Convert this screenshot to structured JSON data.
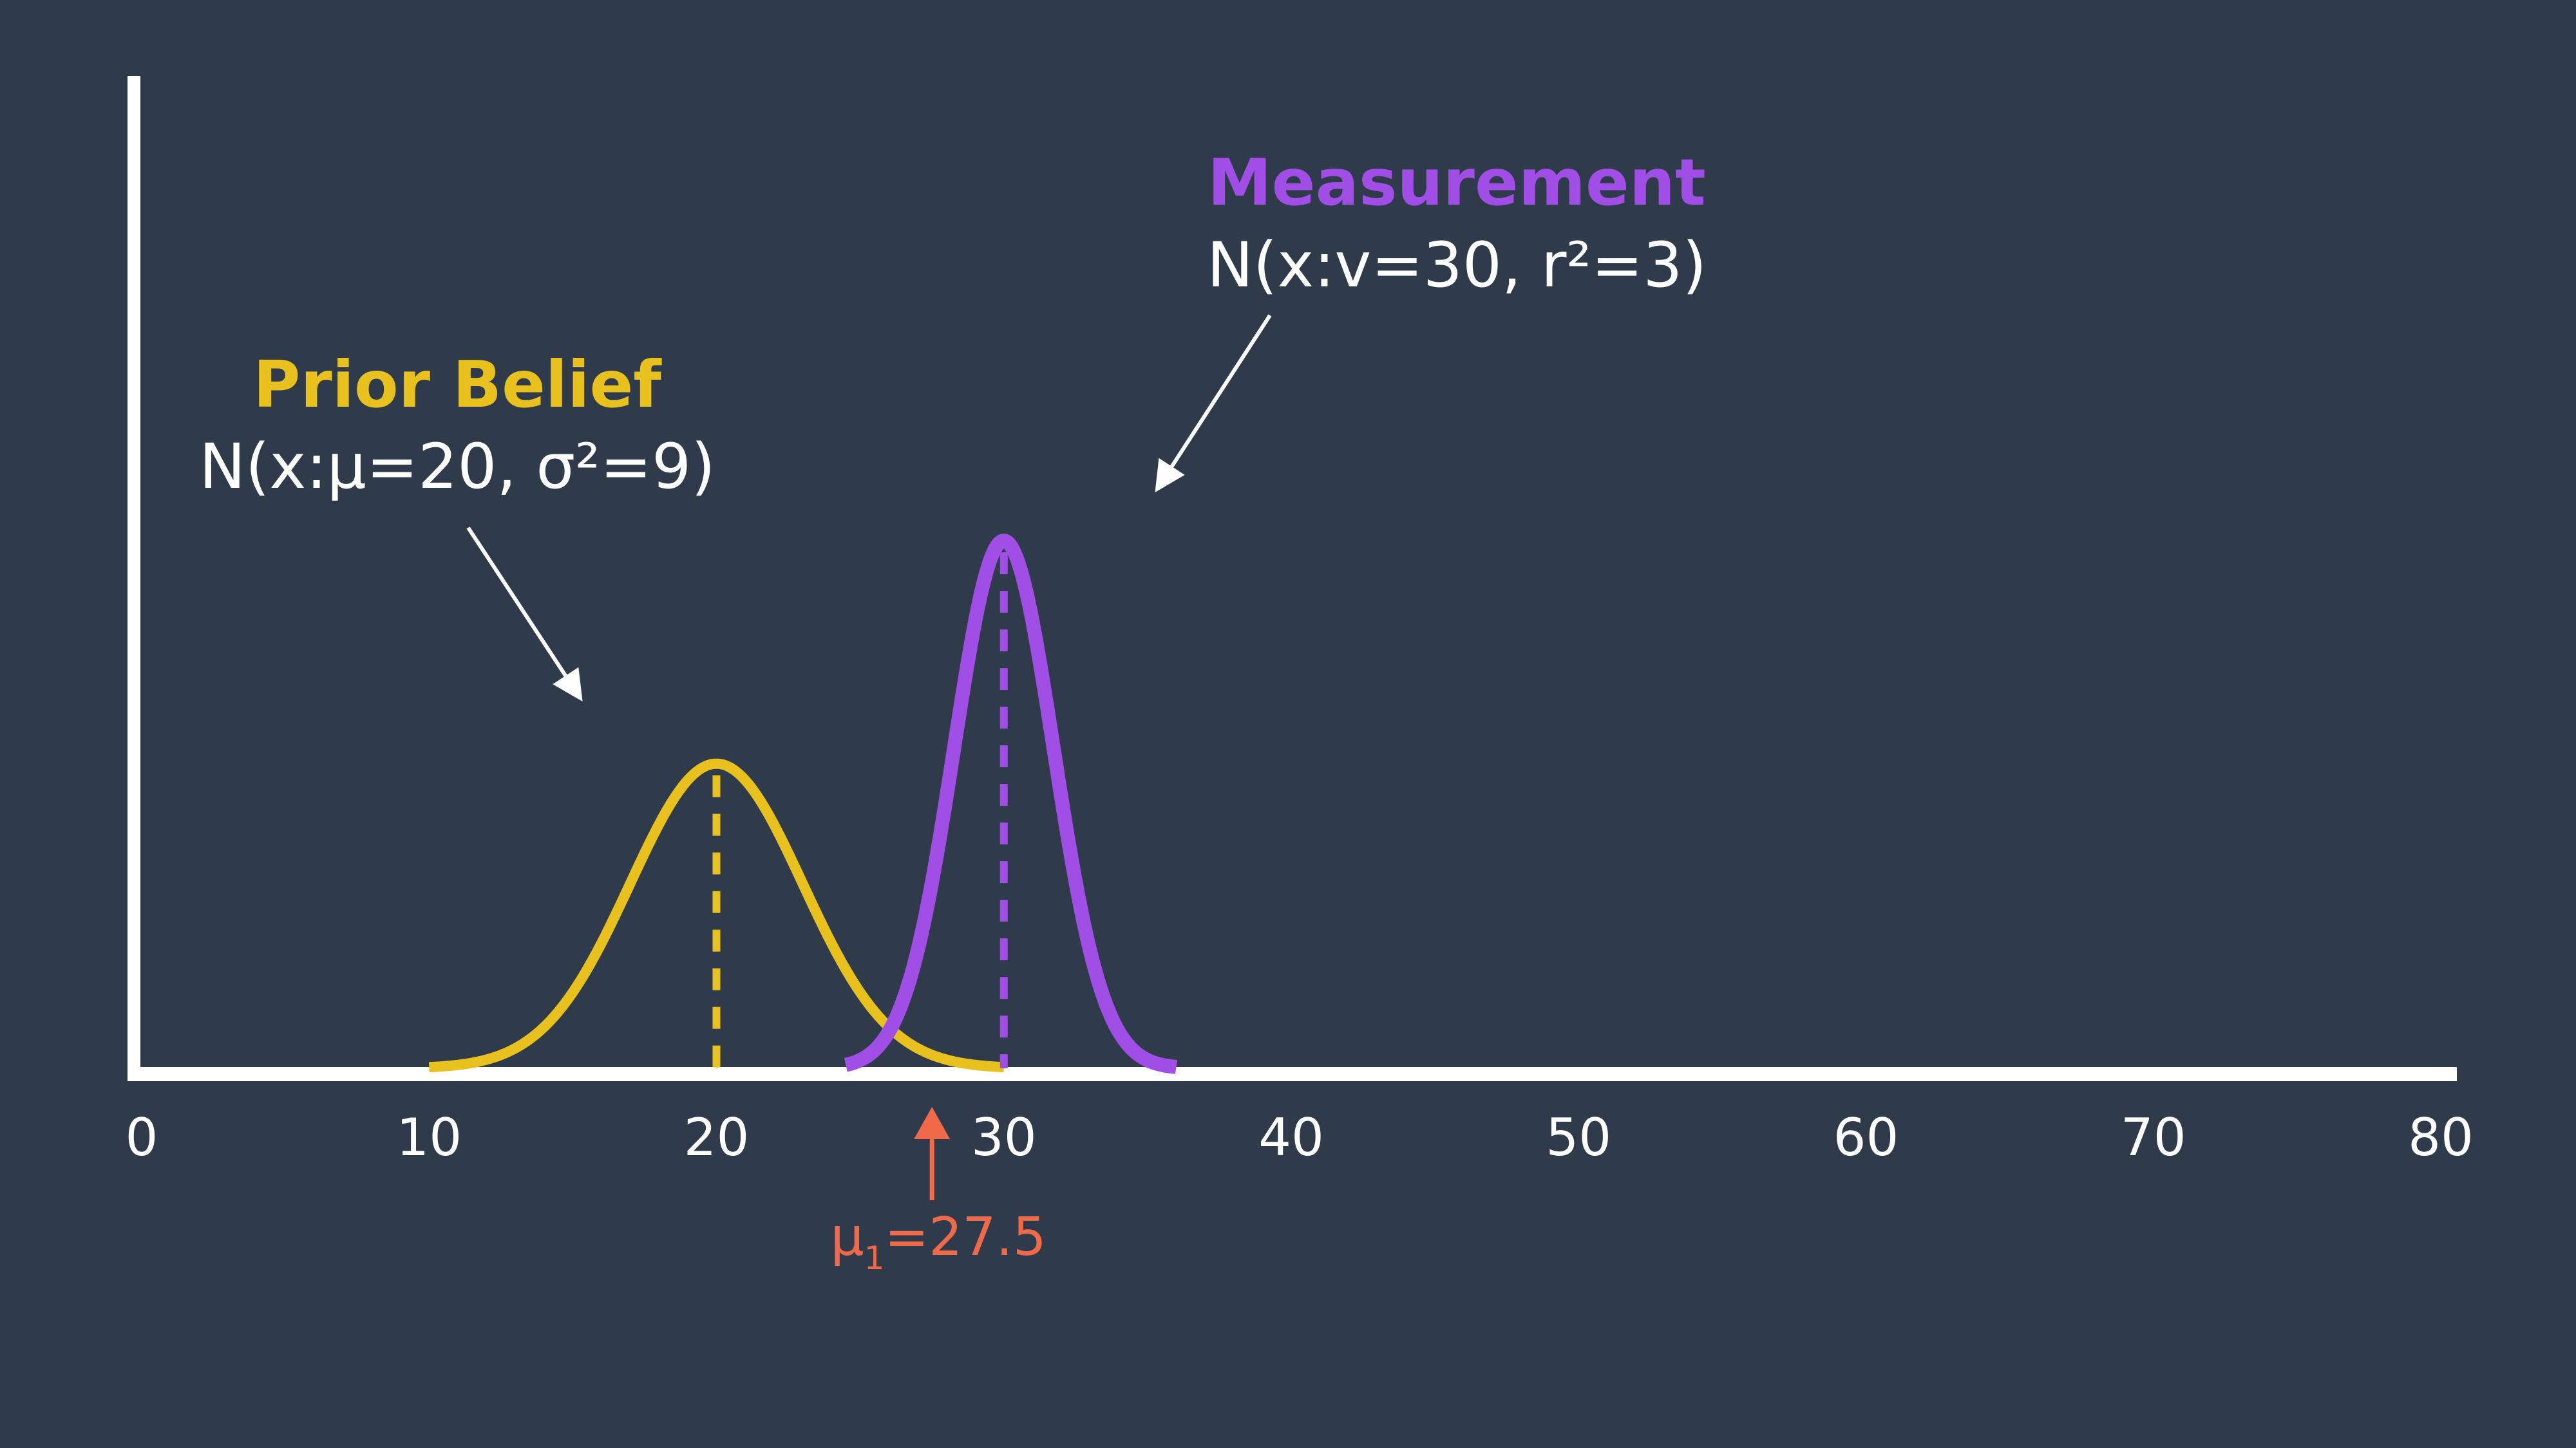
{
  "colors": {
    "background": "#2f3b4a",
    "axis": "#ffffff",
    "prior": "#e8c11f",
    "measurement": "#a04ee6",
    "result": "#f06a4a"
  },
  "chart_data": {
    "type": "line",
    "xlim": [
      0,
      80
    ],
    "x_ticks": [
      "0",
      "10",
      "20",
      "30",
      "40",
      "50",
      "60",
      "70",
      "80"
    ],
    "grid": false,
    "series": [
      {
        "key": "prior",
        "mean": 20,
        "variance": 9,
        "title": "Prior Belief",
        "formula": "N(x:μ=20, σ²=9)",
        "peak_marker": "dashed"
      },
      {
        "key": "measurement",
        "mean": 30,
        "variance": 3,
        "title": "Measurement",
        "formula": "N(x:v=30, r²=3)",
        "peak_marker": "dashed"
      }
    ],
    "annotations": [
      {
        "text_main": "μ",
        "text_sub": "1",
        "text_rest": "=27.5",
        "x": 27.5
      }
    ]
  }
}
